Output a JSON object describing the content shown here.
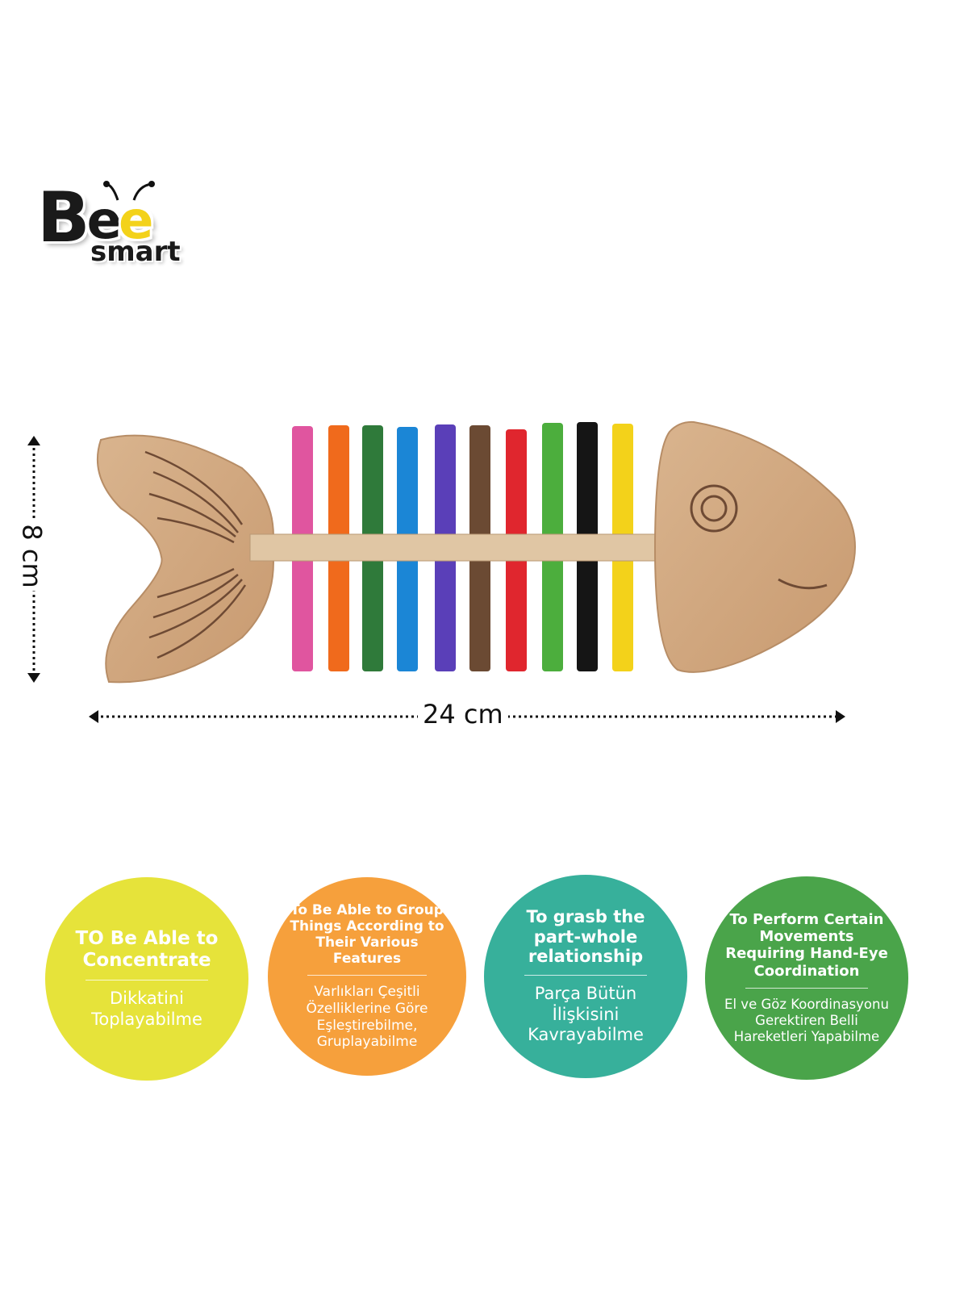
{
  "brand": {
    "logo_text": "Bee smart"
  },
  "product": {
    "stick_colors": [
      "#e0559f",
      "#f06a1c",
      "#2f7a3a",
      "#1b86d6",
      "#5a3fb8",
      "#6b4a33",
      "#e0262e",
      "#4cae3d",
      "#151515",
      "#f3d21a"
    ]
  },
  "dimensions": {
    "height_label": "8 cm",
    "width_label": "24 cm"
  },
  "benefits": [
    {
      "color": "#e6e33a",
      "en": "TO Be Able to\nConcentrate",
      "tr": "Dikkatini\nToplayabilme"
    },
    {
      "color": "#f6a03c",
      "en": "To Be Able to Group\nThings According to\nTheir Various\nFeatures",
      "tr": "Varlıkları Çeşitli\nÖzelliklerine Göre\nEşleştirebilme,\nGruplayabilme"
    },
    {
      "color": "#37b09b",
      "en": "To grasb the\npart-whole\nrelationship",
      "tr": "Parça Bütün\nİlişkisini\nKavrayabilme"
    },
    {
      "color": "#4aa44a",
      "en": "To Perform Certain\nMovements\nRequiring Hand-Eye\nCoordination",
      "tr": "El ve Göz Koordinasyonu\nGerektiren Belli\nHareketleri Yapabilme"
    }
  ]
}
